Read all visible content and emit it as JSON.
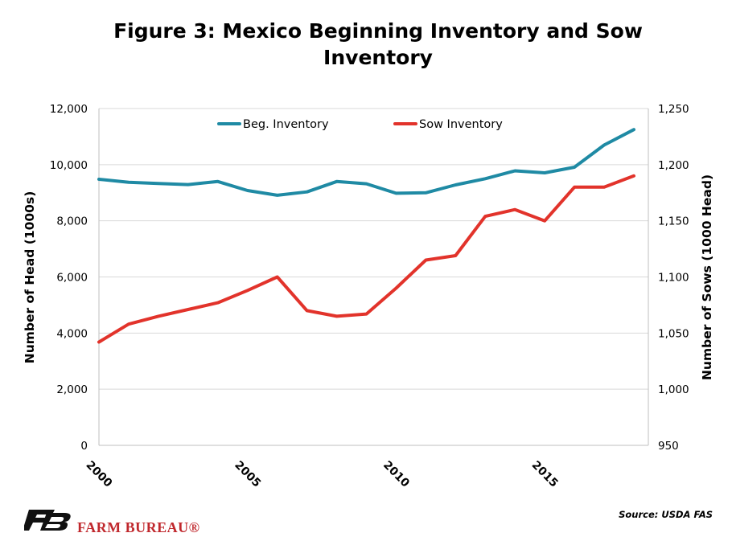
{
  "title": "Figure 3: Mexico Beginning Inventory and Sow Inventory",
  "source": "Source: USDA FAS",
  "brand": {
    "name": "FARM BUREAU®",
    "color": "#c0282d"
  },
  "chart_data": {
    "type": "line",
    "title": "Figure 3: Mexico Beginning Inventory and Sow Inventory",
    "xlabel": "",
    "ylabel": "Number of Head (1000s)",
    "ylabel_right": "Number of Sows (1000 Head)",
    "xlim": [
      2000,
      2018
    ],
    "x_ticks": [
      "2000",
      "2005",
      "2010",
      "2015"
    ],
    "ylim": [
      0,
      12000
    ],
    "y_ticks": [
      "0",
      "2,000",
      "4,000",
      "6,000",
      "8,000",
      "10,000",
      "12,000"
    ],
    "ylim_right": [
      950,
      1250
    ],
    "y_ticks_right": [
      "950",
      "1,000",
      "1,050",
      "1,100",
      "1,150",
      "1,200",
      "1,250"
    ],
    "grid": true,
    "legend": "top-center",
    "x": [
      2000,
      2001,
      2002,
      2003,
      2004,
      2005,
      2006,
      2007,
      2008,
      2009,
      2010,
      2011,
      2012,
      2013,
      2014,
      2015,
      2016,
      2017,
      2018
    ],
    "series": [
      {
        "name": "Beg. Inventory",
        "axis": "left",
        "color": "#1f8aa4",
        "values": [
          9480,
          9370,
          9330,
          9290,
          9400,
          9080,
          8910,
          9030,
          9400,
          9320,
          8980,
          9000,
          9280,
          9500,
          9780,
          9710,
          9910,
          10700,
          11250
        ]
      },
      {
        "name": "Sow Inventory",
        "axis": "right",
        "color": "#e2332b",
        "values": [
          1042,
          1058,
          1065,
          1071,
          1077,
          1088,
          1100,
          1070,
          1065,
          1067,
          1090,
          1115,
          1119,
          1154,
          1160,
          1150,
          1180,
          1180,
          1190
        ]
      }
    ]
  }
}
